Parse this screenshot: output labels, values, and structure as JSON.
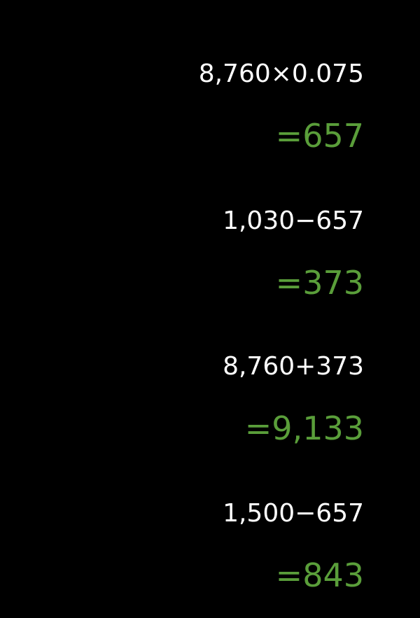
{
  "history": [
    {
      "expression": "8,760×0.075",
      "result": "=657"
    },
    {
      "expression": "1,030−657",
      "result": "=373"
    },
    {
      "expression": "8,760+373",
      "result": "=9,133"
    },
    {
      "expression": "1,500−657",
      "result": "=843"
    }
  ],
  "colors": {
    "background": "#000000",
    "expression_text": "#ffffff",
    "result_text": "#5a9e3a"
  }
}
